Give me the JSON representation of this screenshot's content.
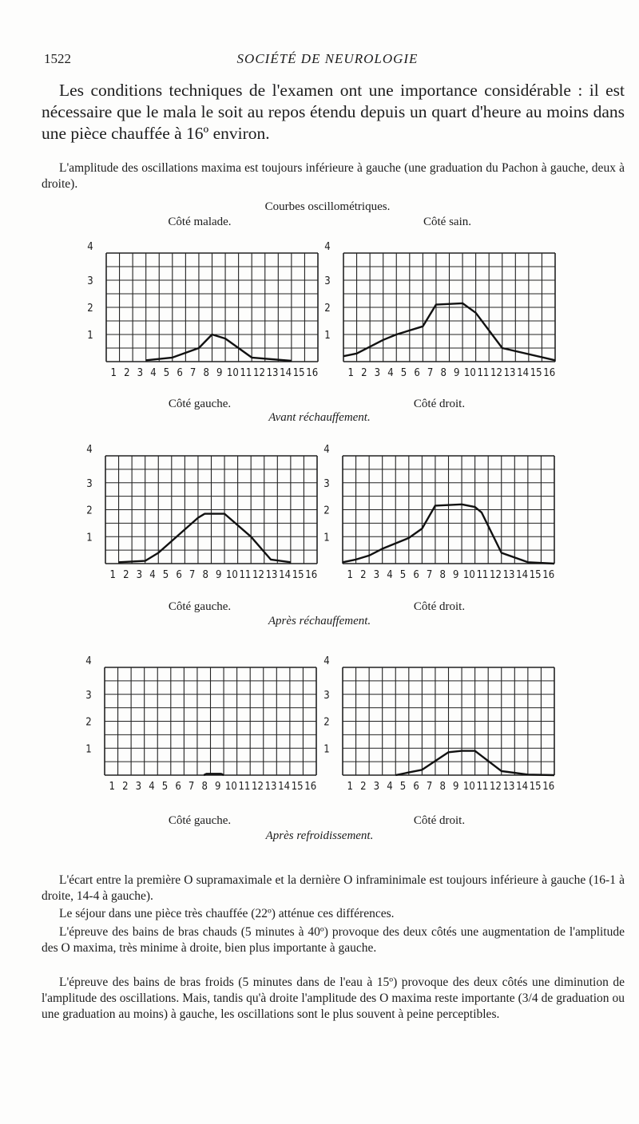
{
  "header": {
    "page_number": "1522",
    "running_title": "SOCIÉTÉ DE NEUROLOGIE"
  },
  "intro": "Les conditions techniques de l'examen ont une importance considérable : il est nécessaire que le mala le soit au repos étendu depuis un quart d'heure au moins dans une pièce chauffée à 16º environ.",
  "para_amplitude": "L'amplitude des oscillations maxima est toujours inférieure à gauche (une graduation du Pachon à gauche, deux à droite).",
  "figure": {
    "title": "Courbes oscillométriques.",
    "col_heads": [
      "Côté malade.",
      "Côté sain."
    ],
    "side_labels": [
      "Côté gauche.",
      "Côté droit."
    ],
    "section_titles": [
      "Avant réchauffement.",
      "Après réchauffement.",
      "Après refroidissement."
    ]
  },
  "chart_data": [
    {
      "type": "line",
      "section": "Avant réchauffement.",
      "side": "Côté gauche.",
      "xticks": [
        "1",
        "2",
        "3",
        "4",
        "5",
        "6",
        "7",
        "8",
        "9",
        "10",
        "11",
        "12",
        "13",
        "14",
        "15",
        "16"
      ],
      "yticks": [
        "1",
        "2",
        "3",
        "4"
      ],
      "xlim": [
        0,
        16
      ],
      "ylim": [
        0,
        4
      ],
      "grid": true,
      "points": [
        [
          3,
          0.05
        ],
        [
          5,
          0.15
        ],
        [
          7,
          0.5
        ],
        [
          8,
          1.0
        ],
        [
          9,
          0.85
        ],
        [
          11,
          0.15
        ],
        [
          14,
          0.03
        ]
      ]
    },
    {
      "type": "line",
      "section": "Avant réchauffement.",
      "side": "Côté droit.",
      "xticks": [
        "1",
        "2",
        "3",
        "4",
        "5",
        "6",
        "7",
        "8",
        "9",
        "10",
        "11",
        "12",
        "13",
        "14",
        "15",
        "16"
      ],
      "yticks": [
        "1",
        "2",
        "3",
        "4"
      ],
      "xlim": [
        0,
        16
      ],
      "ylim": [
        0,
        4
      ],
      "grid": true,
      "points": [
        [
          0,
          0.2
        ],
        [
          1,
          0.3
        ],
        [
          3,
          0.8
        ],
        [
          4,
          1.0
        ],
        [
          6,
          1.3
        ],
        [
          7,
          2.1
        ],
        [
          9,
          2.15
        ],
        [
          10,
          1.8
        ],
        [
          12,
          0.5
        ],
        [
          16,
          0.05
        ]
      ]
    },
    {
      "type": "line",
      "section": "Après réchauffement.",
      "side": "Côté gauche.",
      "xticks": [
        "1",
        "2",
        "3",
        "4",
        "5",
        "6",
        "7",
        "8",
        "9",
        "10",
        "11",
        "12",
        "13",
        "14",
        "15",
        "16"
      ],
      "yticks": [
        "1",
        "2",
        "3",
        "4"
      ],
      "xlim": [
        0,
        16
      ],
      "ylim": [
        0,
        4
      ],
      "grid": true,
      "points": [
        [
          1,
          0.05
        ],
        [
          3,
          0.1
        ],
        [
          4,
          0.4
        ],
        [
          7,
          1.7
        ],
        [
          7.5,
          1.85
        ],
        [
          9,
          1.85
        ],
        [
          11,
          1.0
        ],
        [
          12.5,
          0.15
        ],
        [
          14,
          0.05
        ]
      ]
    },
    {
      "type": "line",
      "section": "Après réchauffement.",
      "side": "Côté droit.",
      "xticks": [
        "1",
        "2",
        "3",
        "4",
        "5",
        "6",
        "7",
        "8",
        "9",
        "10",
        "11",
        "12",
        "13",
        "14",
        "15",
        "16"
      ],
      "yticks": [
        "1",
        "2",
        "3",
        "4"
      ],
      "xlim": [
        0,
        16
      ],
      "ylim": [
        0,
        4
      ],
      "grid": true,
      "points": [
        [
          0,
          0.05
        ],
        [
          1,
          0.15
        ],
        [
          2,
          0.3
        ],
        [
          3,
          0.55
        ],
        [
          5,
          0.95
        ],
        [
          6,
          1.3
        ],
        [
          7,
          2.15
        ],
        [
          9,
          2.2
        ],
        [
          10,
          2.1
        ],
        [
          10.5,
          1.9
        ],
        [
          12,
          0.4
        ],
        [
          14,
          0.05
        ],
        [
          16,
          0
        ]
      ]
    },
    {
      "type": "line",
      "section": "Après refroidissement.",
      "side": "Côté gauche.",
      "xticks": [
        "1",
        "2",
        "3",
        "4",
        "5",
        "6",
        "7",
        "8",
        "9",
        "10",
        "11",
        "12",
        "13",
        "14",
        "15",
        "16"
      ],
      "yticks": [
        "1",
        "2",
        "3",
        "4"
      ],
      "xlim": [
        0,
        16
      ],
      "ylim": [
        0,
        4
      ],
      "grid": true,
      "points": [
        [
          7.5,
          0
        ],
        [
          7.7,
          0.05
        ],
        [
          8.8,
          0.05
        ],
        [
          9,
          0
        ]
      ]
    },
    {
      "type": "line",
      "section": "Après refroidissement.",
      "side": "Côté droit.",
      "xticks": [
        "1",
        "2",
        "3",
        "4",
        "5",
        "6",
        "7",
        "8",
        "9",
        "10",
        "11",
        "12",
        "13",
        "14",
        "15",
        "16"
      ],
      "yticks": [
        "1",
        "2",
        "3",
        "4"
      ],
      "xlim": [
        0,
        16
      ],
      "ylim": [
        0,
        4
      ],
      "grid": true,
      "points": [
        [
          4,
          0
        ],
        [
          5,
          0.1
        ],
        [
          6,
          0.2
        ],
        [
          8,
          0.85
        ],
        [
          9,
          0.9
        ],
        [
          10,
          0.9
        ],
        [
          12,
          0.15
        ],
        [
          14,
          0.02
        ],
        [
          16,
          0
        ]
      ]
    }
  ],
  "paragraphs": [
    "L'écart entre la première O supramaximale et la dernière O inframinimale est toujours inférieure à gauche (16-1 à droite, 14-4 à gauche).",
    "Le séjour dans une pièce très chauffée (22º) atténue ces différences.",
    "L'épreuve des bains de bras chauds (5 minutes à 40º) provoque des deux côtés une augmentation de l'amplitude des O maxima, très minime à droite, bien plus importante à gauche.",
    "L'épreuve des bains de bras froids (5 minutes dans de l'eau à 15º) provoque des deux côtés une diminution de l'amplitude des oscillations. Mais, tandis qu'à droite l'amplitude des O maxima reste importante (3/4 de graduation ou une graduation au moins) à gauche, les oscillations sont le plus souvent à peine perceptibles."
  ]
}
